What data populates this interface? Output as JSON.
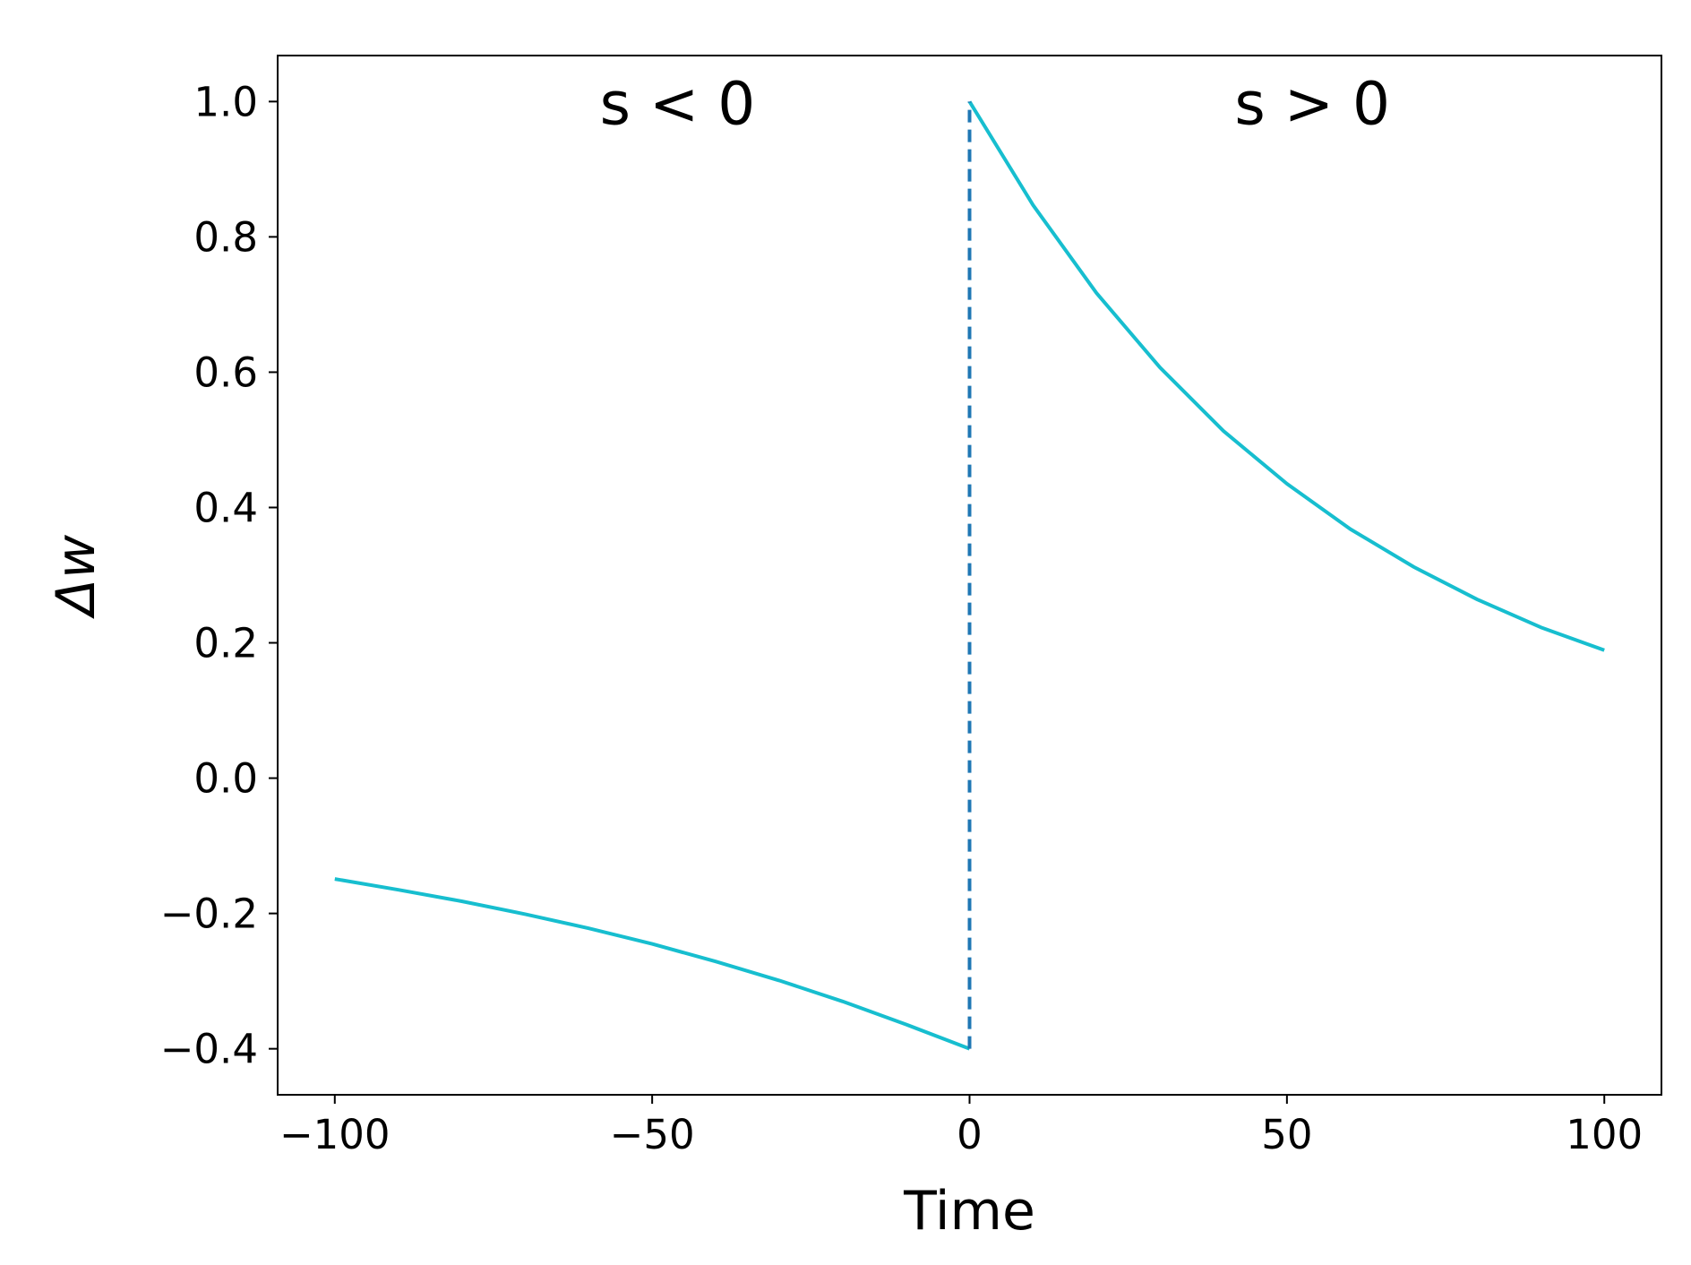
{
  "chart_data": {
    "type": "line",
    "title": "",
    "xlabel": "Time",
    "ylabel": "Δw",
    "xlim": [
      -109,
      109
    ],
    "ylim": [
      -0.468,
      1.068
    ],
    "grid": false,
    "legend": "none",
    "xticks": [
      -100,
      -50,
      0,
      50,
      100
    ],
    "xtick_labels": [
      "−100",
      "−50",
      "0",
      "50",
      "100"
    ],
    "yticks": [
      -0.4,
      -0.2,
      0.0,
      0.2,
      0.4,
      0.6,
      0.8,
      1.0
    ],
    "ytick_labels": [
      "−0.4",
      "−0.2",
      "0.0",
      "0.2",
      "0.4",
      "0.6",
      "0.8",
      "1.0"
    ],
    "annotations": [
      {
        "text": "s < 0",
        "x": -46,
        "y": 0.98
      },
      {
        "text": "s > 0",
        "x": 54,
        "y": 0.98
      }
    ],
    "series": [
      {
        "color": "#17becf",
        "style": "solid",
        "x": [
          -100,
          -90,
          -80,
          -70,
          -60,
          -50,
          -40,
          -30,
          -20,
          -10,
          0
        ],
        "y": [
          -0.149,
          -0.165,
          -0.182,
          -0.201,
          -0.222,
          -0.245,
          -0.271,
          -0.299,
          -0.33,
          -0.364,
          -0.4
        ]
      },
      {
        "color": "#17becf",
        "style": "solid",
        "x": [
          0,
          10,
          20,
          30,
          40,
          50,
          60,
          70,
          80,
          90,
          100
        ],
        "y": [
          1.0,
          0.847,
          0.717,
          0.607,
          0.513,
          0.435,
          0.368,
          0.312,
          0.264,
          0.223,
          0.189
        ]
      },
      {
        "color": "#1f77b4",
        "style": "dashed",
        "x": [
          0,
          0
        ],
        "y": [
          -0.4,
          1.0
        ]
      }
    ]
  }
}
